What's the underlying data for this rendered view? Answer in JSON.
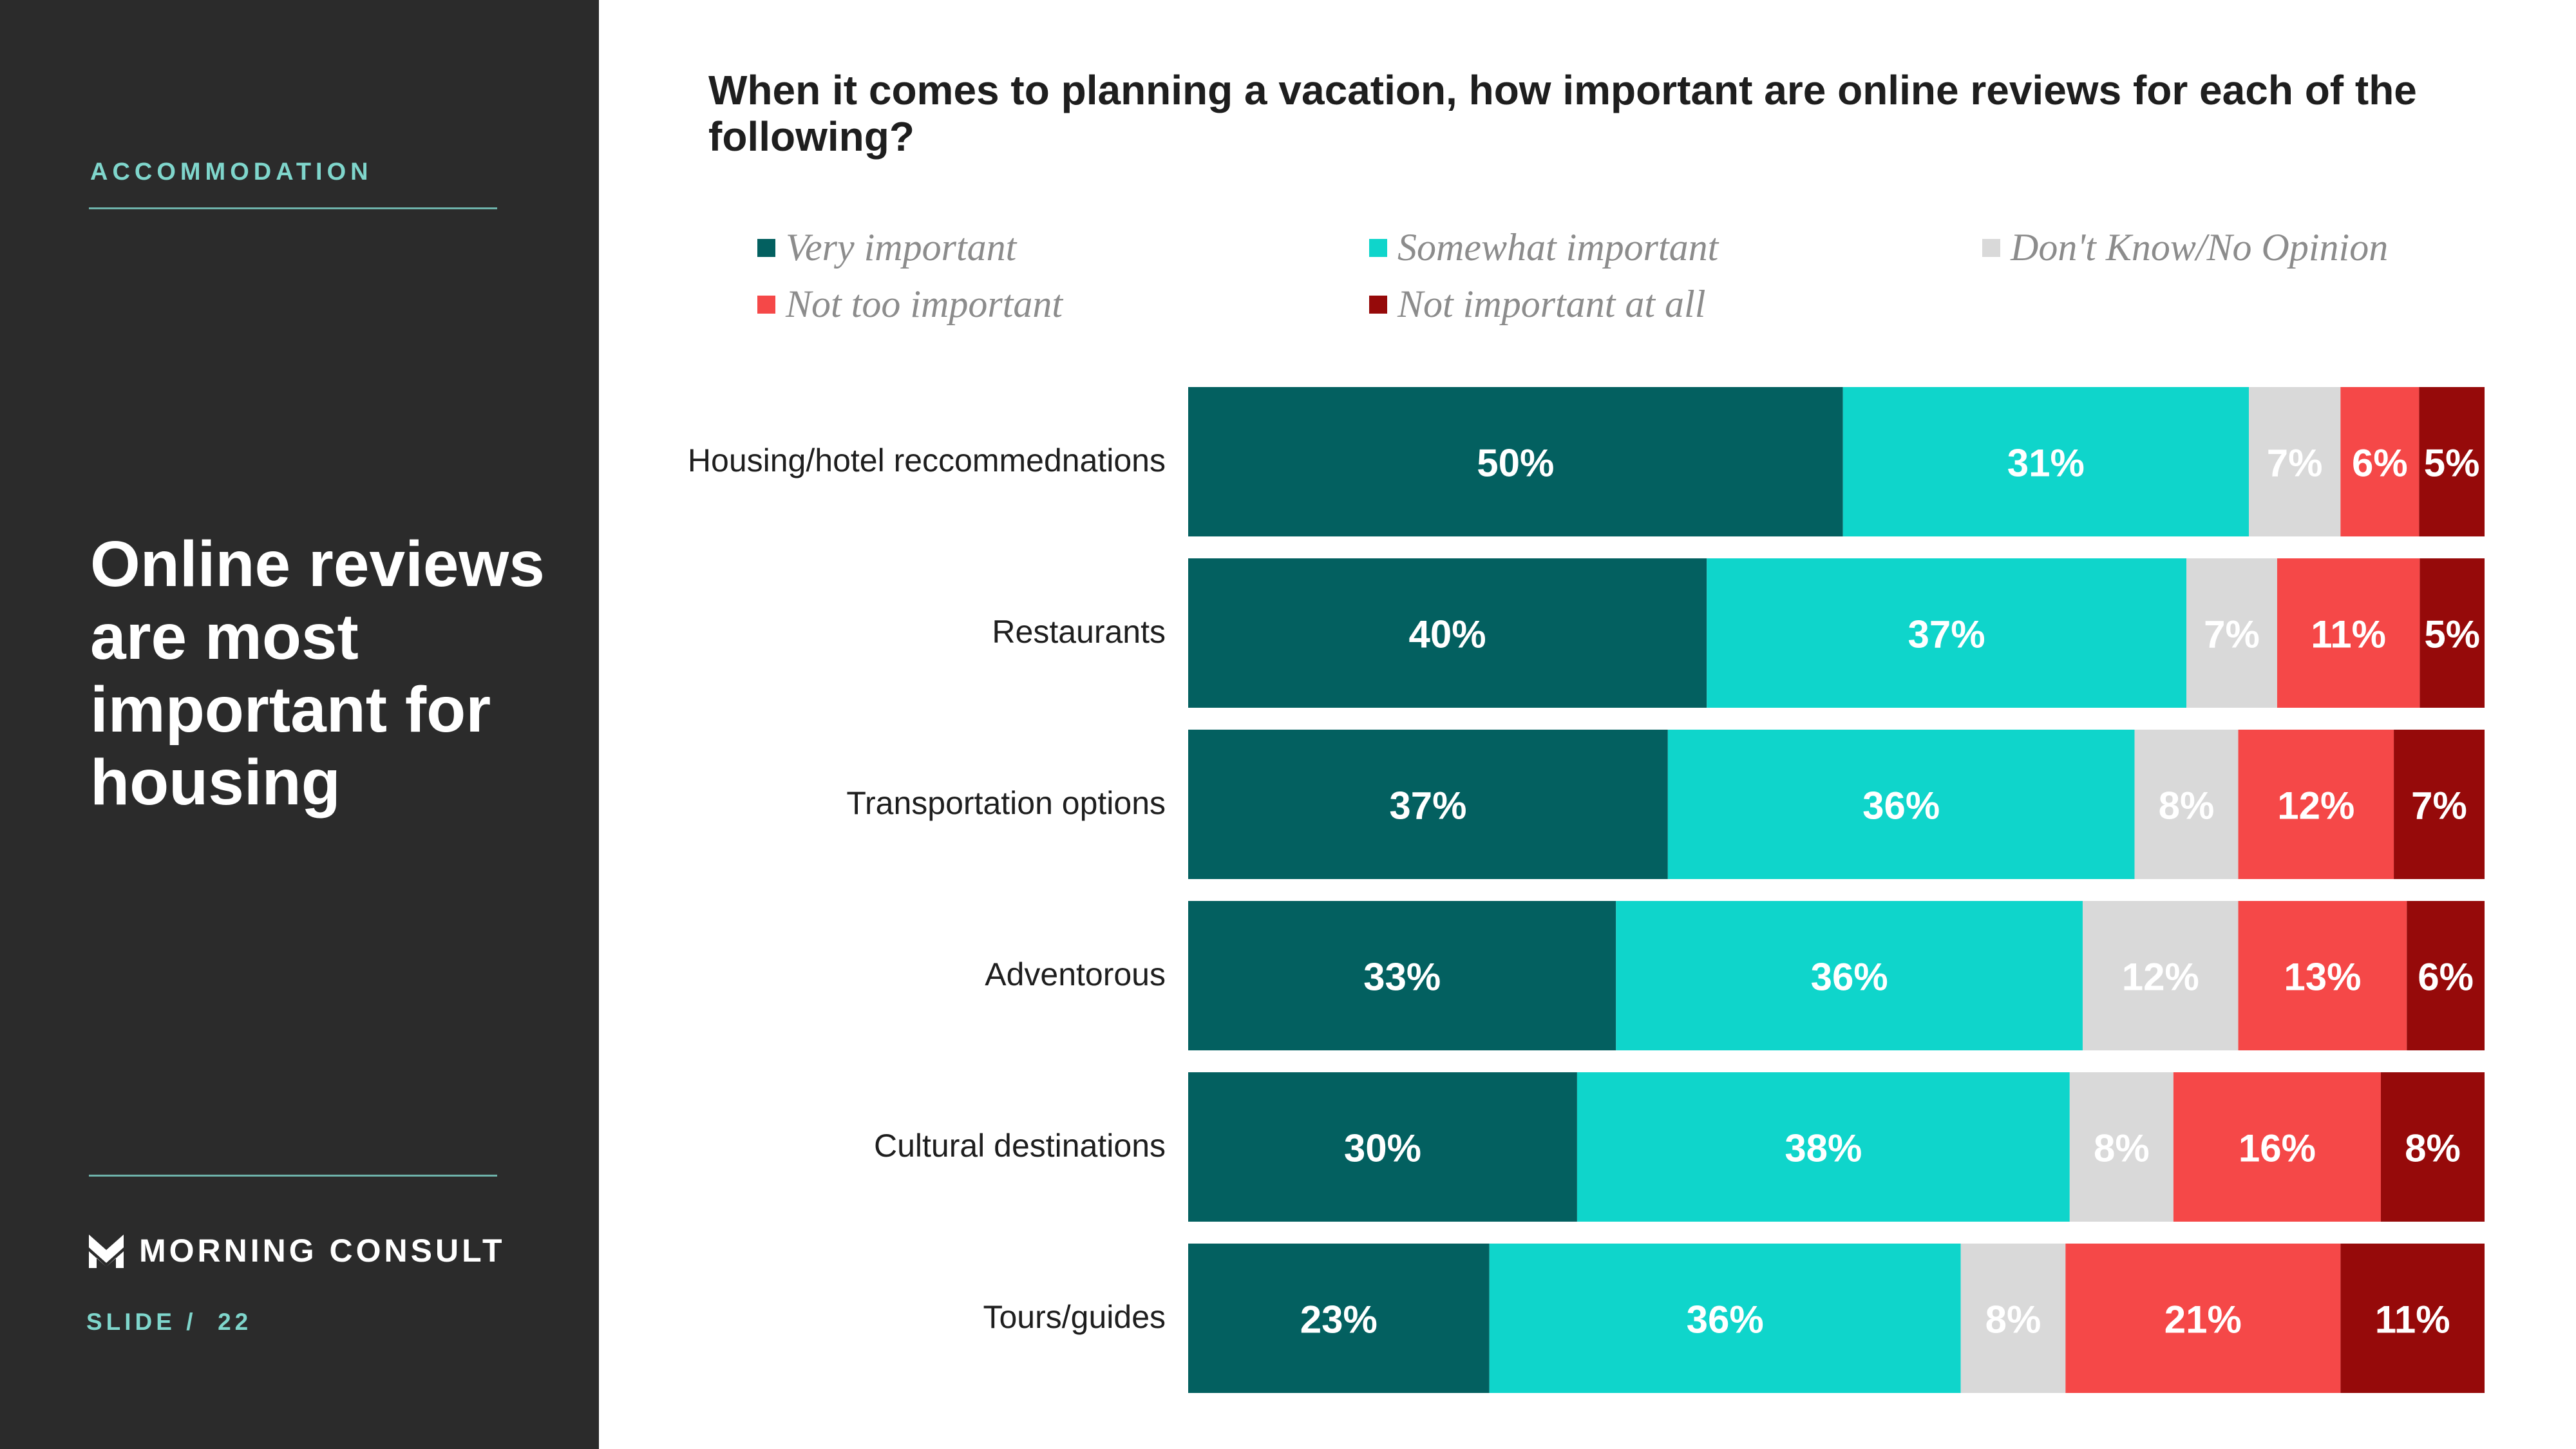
{
  "sidebar": {
    "section_label": "ACCOMMODATION",
    "headline": "Online reviews are most important for housing",
    "brand_name": "MORNING CONSULT",
    "slide_label": "SLIDE /  22"
  },
  "chart_data": {
    "type": "bar",
    "orientation": "horizontal",
    "stacked": true,
    "title": "When it comes to planning a vacation, how important are online reviews for each of the following?",
    "xlabel": "",
    "ylabel": "",
    "xlim": [
      0,
      100
    ],
    "grid": false,
    "legend_position": "top",
    "categories": [
      "Housing/hotel reccommednations",
      "Restaurants",
      "Transportation options",
      "Adventorous",
      "Cultural destinations",
      "Tours/guides"
    ],
    "series": [
      {
        "name": "Very important",
        "color": "#036060",
        "label_color": "#ffffff",
        "values": [
          50,
          40,
          37,
          33,
          30,
          23
        ],
        "labels": [
          "50%",
          "40%",
          "37%",
          "33%",
          "30%",
          "23%"
        ]
      },
      {
        "name": "Somewhat important",
        "color": "#0fd5cb",
        "label_color": "#ffffff",
        "values": [
          31,
          37,
          36,
          36,
          38,
          36
        ],
        "labels": [
          "31%",
          "37%",
          "36%",
          "36%",
          "38%",
          "36%"
        ]
      },
      {
        "name": "Don't Know/No Opinion",
        "color": "#d9d9d9",
        "label_color": "#ffffff",
        "values": [
          7,
          7,
          8,
          12,
          8,
          8
        ],
        "labels": [
          "7%",
          "7%",
          "8%",
          "12%",
          "8%",
          "8%"
        ]
      },
      {
        "name": "Not too important",
        "color": "#f54848",
        "label_color": "#ffffff",
        "values": [
          6,
          11,
          12,
          13,
          16,
          21
        ],
        "labels": [
          "6%",
          "11%",
          "12%",
          "13%",
          "16%",
          "21%"
        ]
      },
      {
        "name": "Not important at all",
        "color": "#960a0a",
        "label_color": "#ffffff",
        "values": [
          5,
          5,
          7,
          6,
          8,
          11
        ],
        "labels": [
          "5%",
          "5%",
          "7%",
          "6%",
          "8%",
          "11%"
        ]
      }
    ]
  }
}
